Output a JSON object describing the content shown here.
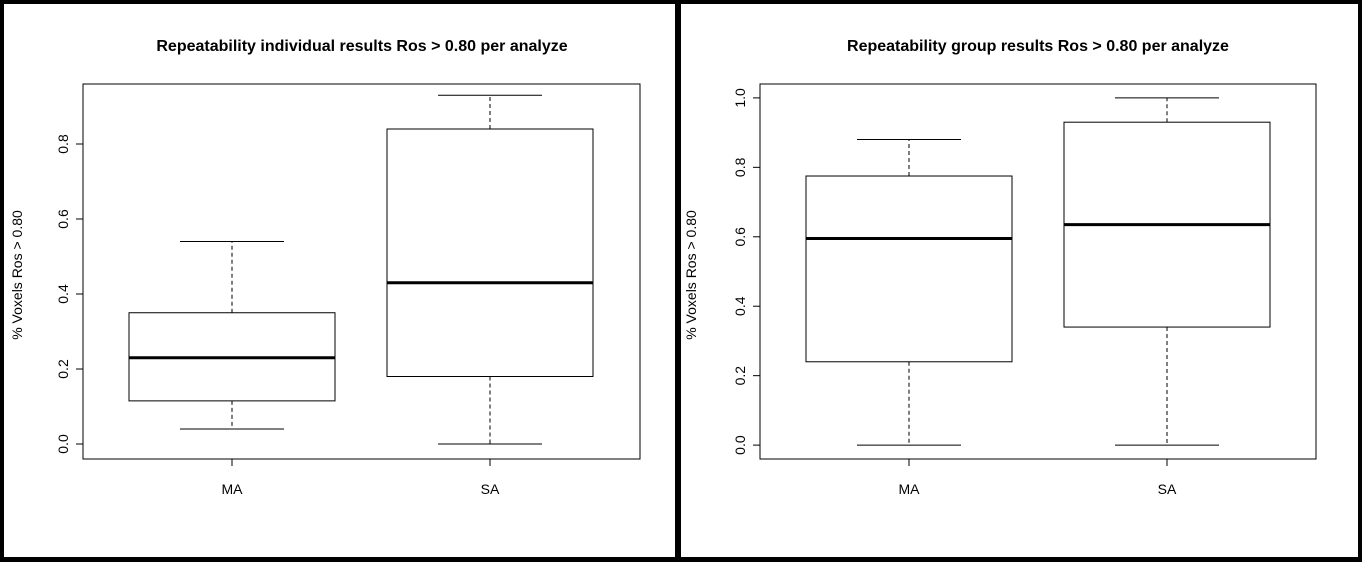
{
  "chart_data": [
    {
      "type": "boxplot",
      "title": "Repeatability individual results Ros > 0.80 per analyze",
      "xlabel": "",
      "ylabel": "% Voxels Ros > 0.80",
      "categories": [
        "MA",
        "SA"
      ],
      "yticks": [
        "0.0",
        "0.2",
        "0.4",
        "0.6",
        "0.8"
      ],
      "ylim": [
        -0.04,
        0.96
      ],
      "boxes": [
        {
          "label": "MA",
          "min": 0.04,
          "q1": 0.115,
          "median": 0.23,
          "q3": 0.35,
          "max": 0.54
        },
        {
          "label": "SA",
          "min": 0.0,
          "q1": 0.18,
          "median": 0.43,
          "q3": 0.84,
          "max": 0.93
        }
      ],
      "grid": false
    },
    {
      "type": "boxplot",
      "title": "Repeatability group results Ros > 0.80 per analyze",
      "xlabel": "",
      "ylabel": "% Voxels Ros > 0.80",
      "categories": [
        "MA",
        "SA"
      ],
      "yticks": [
        "0.0",
        "0.2",
        "0.4",
        "0.6",
        "0.8",
        "1.0"
      ],
      "ylim": [
        -0.04,
        1.04
      ],
      "boxes": [
        {
          "label": "MA",
          "min": 0.0,
          "q1": 0.24,
          "median": 0.595,
          "q3": 0.775,
          "max": 0.88
        },
        {
          "label": "SA",
          "min": 0.0,
          "q1": 0.34,
          "median": 0.635,
          "q3": 0.93,
          "max": 1.0
        }
      ],
      "grid": false
    }
  ]
}
